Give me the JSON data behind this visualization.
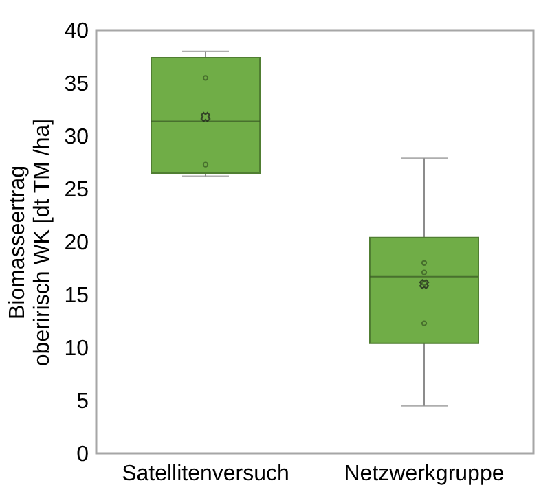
{
  "chart_data": {
    "type": "box",
    "ylabel": "Biomasseertrag\noberirisch WK [dt TM /ha]",
    "categories": [
      "Satellitenversuch",
      "Netzwerkgruppe"
    ],
    "color": "#70ad47",
    "boxes": [
      {
        "low": 26.2,
        "q1": 26.5,
        "median": 31.4,
        "q3": 37.4,
        "high": 38.0,
        "mean": 31.8
      },
      {
        "low": 4.5,
        "q1": 10.4,
        "median": 16.7,
        "q3": 20.4,
        "high": 27.9,
        "mean": 16.0
      }
    ],
    "series": [
      {
        "type": "scatter",
        "x": [
          "Satellitenversuch",
          "Satellitenversuch",
          "Netzwerkgruppe",
          "Netzwerkgruppe",
          "Netzwerkgruppe",
          "Netzwerkgruppe"
        ],
        "values": [
          35.5,
          27.3,
          18.0,
          17.1,
          16.1,
          12.3
        ],
        "color": "#375623"
      }
    ],
    "ylim": [
      0,
      40
    ],
    "yticks": [
      0,
      5,
      10,
      15,
      20,
      25,
      30,
      35,
      40
    ],
    "grid": false,
    "marker": "circle"
  }
}
